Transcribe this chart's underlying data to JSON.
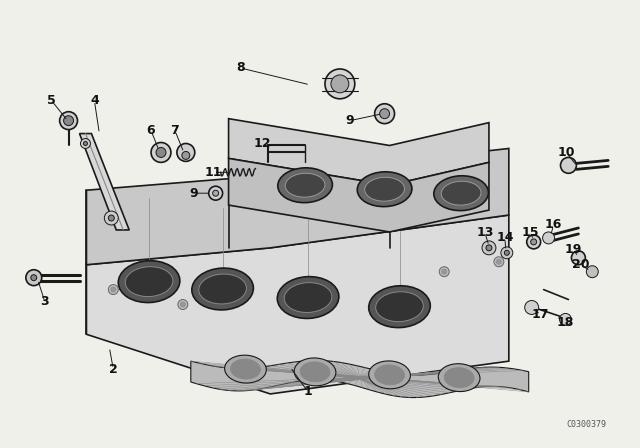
{
  "bg_color": "#f0f0eb",
  "line_color": "#1a1a1a",
  "text_color": "#111111",
  "watermark": "C0300379",
  "figsize": [
    6.4,
    4.48
  ],
  "dpi": 100
}
